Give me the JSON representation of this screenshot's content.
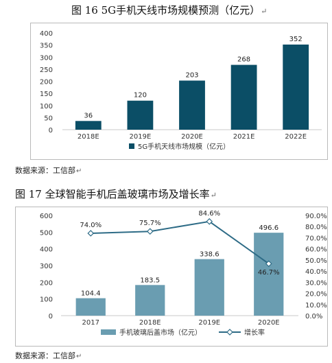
{
  "figures": [
    {
      "title": "图 16   5G手机天线市场规模预测（亿元）",
      "source": "数据来源：工信部"
    },
    {
      "title": "图 17   全球智能手机后盖玻璃市场及增长率",
      "source": "数据来源：工信部"
    }
  ],
  "colors": {
    "bar1": "#0b4e66",
    "bar2": "#6a9db1",
    "line2": "#2d6b86"
  },
  "chart_data": [
    {
      "type": "bar",
      "categories": [
        "2018E",
        "2019E",
        "2020E",
        "2021E",
        "2022E"
      ],
      "values": [
        36,
        120,
        203,
        268,
        352
      ],
      "data_labels": [
        "36",
        "120",
        "203",
        "268",
        "352"
      ],
      "ylim": [
        0,
        400
      ],
      "yticks": [
        "0",
        "50",
        "100",
        "150",
        "200",
        "250",
        "300",
        "350",
        "400"
      ],
      "series": [
        {
          "name": "5G手机天线市场规模（亿元）",
          "values": [
            36,
            120,
            203,
            268,
            352
          ]
        }
      ],
      "legend_position": "bottom",
      "grid": false
    },
    {
      "type": "bar",
      "categories": [
        "2017",
        "2018E",
        "2019E",
        "2020E"
      ],
      "series": [
        {
          "name": "手机玻璃后盖市场（亿元）",
          "type": "bar",
          "axis": "left",
          "values": [
            104.4,
            183.5,
            338.6,
            496.6
          ],
          "labels": [
            "104.4",
            "183.5",
            "338.6",
            "496.6"
          ]
        },
        {
          "name": "增长率",
          "type": "line",
          "axis": "right",
          "values": [
            74.0,
            75.7,
            84.6,
            46.7
          ],
          "labels": [
            "74.0%",
            "75.7%",
            "84.6%",
            "46.7%"
          ]
        }
      ],
      "ylim_left": [
        0,
        600
      ],
      "yticks_left": [
        "0",
        "100",
        "200",
        "300",
        "400",
        "500",
        "600"
      ],
      "ylim_right": [
        0,
        90
      ],
      "yticks_right": [
        "0.0%",
        "10.0%",
        "20.0%",
        "30.0%",
        "40.0%",
        "50.0%",
        "60.0%",
        "70.0%",
        "80.0%",
        "90.0%"
      ],
      "legend_position": "bottom",
      "grid": false
    }
  ]
}
